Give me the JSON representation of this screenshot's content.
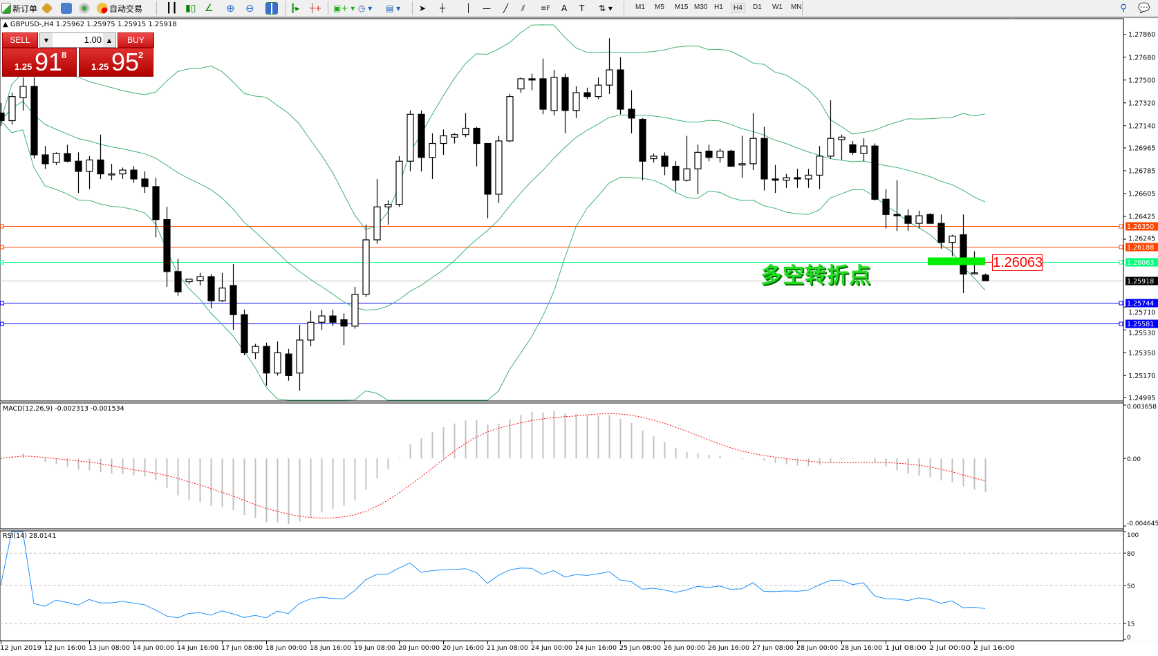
{
  "toolbar": {
    "new_order": "新订单",
    "auto_trading": "自动交易",
    "periods": [
      "M1",
      "M5",
      "M15",
      "M30",
      "H1",
      "H4",
      "D1",
      "W1",
      "MN"
    ],
    "active_period": "H4",
    "icons": [
      "new-order-icon",
      "metaeditor-icon",
      "history-icon",
      "signals-icon",
      "auto-trading-icon",
      "bar-chart-icon",
      "candlestick-icon",
      "line-chart-icon",
      "zoom-in-icon",
      "zoom-out-icon",
      "tile-windows-icon",
      "auto-scroll-icon",
      "chart-shift-icon",
      "indicators-icon",
      "periods-icon",
      "templates-icon",
      "cursor-icon",
      "crosshair-icon",
      "vertical-line-icon",
      "horizontal-line-icon",
      "trendline-icon",
      "equidistant-channel-icon",
      "fibonacci-icon",
      "text-icon",
      "text-label-icon",
      "arrows-icon",
      "search-icon",
      "chat-icon"
    ]
  },
  "header": {
    "symbol": "GBPUSD-,H4",
    "ohlc": "1.25962 1.25975 1.25915 1.25918"
  },
  "one_click": {
    "sell_label": "SELL",
    "buy_label": "BUY",
    "lot": "1.00",
    "sell_prefix": "1.25",
    "sell_big": "91",
    "sell_sup": "8",
    "buy_prefix": "1.25",
    "buy_big": "95",
    "buy_sup": "2"
  },
  "annotation": {
    "text": "多空转折点",
    "price": "1.26063",
    "marker_color": "#00ee00"
  },
  "chart_data": [
    {
      "type": "candlestick",
      "symbol": "GBPUSD-",
      "timeframe": "H4",
      "ylim": [
        1.24995,
        1.2786
      ],
      "y_ticks": [
        "1.27860",
        "1.27680",
        "1.27500",
        "1.27320",
        "1.27140",
        "1.26965",
        "1.26785",
        "1.26605",
        "1.26425",
        "1.26245",
        "1.25710",
        "1.25530",
        "1.25350",
        "1.25170",
        "1.24995"
      ],
      "x_ticks": [
        "12 Jun 2019",
        "12 Jun 16:00",
        "13 Jun 08:00",
        "14 Jun 00:00",
        "14 Jun 16:00",
        "17 Jun 08:00",
        "18 Jun 00:00",
        "18 Jun 16:00",
        "19 Jun 08:00",
        "20 Jun 00:00",
        "20 Jun 16:00",
        "21 Jun 08:00",
        "24 Jun 00:00",
        "24 Jun 16:00",
        "25 Jun 08:00",
        "26 Jun 00:00",
        "26 Jun 16:00",
        "27 Jun 08:00",
        "28 Jun 00:00",
        "28 Jun 16:00",
        "1 Jul 08:00",
        "2 Jul 00:00",
        "2 Jul 16:00"
      ],
      "candles_ohlc": [
        [
          1.2724,
          1.2732,
          1.2714,
          1.2718
        ],
        [
          1.2718,
          1.274,
          1.2715,
          1.2737
        ],
        [
          1.2736,
          1.2752,
          1.2726,
          1.2745
        ],
        [
          1.2745,
          1.2752,
          1.2688,
          1.2691
        ],
        [
          1.2691,
          1.2698,
          1.268,
          1.2684
        ],
        [
          1.2685,
          1.2693,
          1.2683,
          1.2692
        ],
        [
          1.2692,
          1.2699,
          1.2685,
          1.2686
        ],
        [
          1.2686,
          1.2693,
          1.2661,
          1.2678
        ],
        [
          1.2678,
          1.269,
          1.2664,
          1.2687
        ],
        [
          1.2687,
          1.2707,
          1.2672,
          1.2676
        ],
        [
          1.2676,
          1.2684,
          1.2671,
          1.2676
        ],
        [
          1.2676,
          1.2681,
          1.2672,
          1.2679
        ],
        [
          1.2679,
          1.2682,
          1.2669,
          1.2672
        ],
        [
          1.2672,
          1.2678,
          1.2661,
          1.2666
        ],
        [
          1.2666,
          1.2673,
          1.2626,
          1.264
        ],
        [
          1.264,
          1.265,
          1.2587,
          1.2599
        ],
        [
          1.2599,
          1.2609,
          1.258,
          1.2583
        ],
        [
          1.2591,
          1.2593,
          1.2589,
          1.2593
        ],
        [
          1.2592,
          1.2598,
          1.2588,
          1.2595
        ],
        [
          1.2595,
          1.2597,
          1.257,
          1.2576
        ],
        [
          1.2576,
          1.2598,
          1.2575,
          1.2586
        ],
        [
          1.2588,
          1.2605,
          1.2553,
          1.2565
        ],
        [
          1.2565,
          1.2569,
          1.2533,
          1.2535
        ],
        [
          1.2535,
          1.2542,
          1.253,
          1.254
        ],
        [
          1.254,
          1.2543,
          1.2509,
          1.2519
        ],
        [
          1.2519,
          1.2544,
          1.2517,
          1.2535
        ],
        [
          1.2534,
          1.2538,
          1.2513,
          1.2517
        ],
        [
          1.2519,
          1.2557,
          1.2505,
          1.2545
        ],
        [
          1.2545,
          1.2568,
          1.254,
          1.2559
        ],
        [
          1.2559,
          1.2569,
          1.2553,
          1.2564
        ],
        [
          1.2564,
          1.2569,
          1.2556,
          1.2559
        ],
        [
          1.2561,
          1.2566,
          1.2541,
          1.2556
        ],
        [
          1.2556,
          1.2587,
          1.2554,
          1.2581
        ],
        [
          1.2581,
          1.2636,
          1.2579,
          1.2624
        ],
        [
          1.2624,
          1.2672,
          1.2621,
          1.265
        ],
        [
          1.265,
          1.2655,
          1.2636,
          1.2652
        ],
        [
          1.2652,
          1.269,
          1.265,
          1.2686
        ],
        [
          1.2686,
          1.2726,
          1.2678,
          1.2723
        ],
        [
          1.2723,
          1.2726,
          1.2678,
          1.2689
        ],
        [
          1.2689,
          1.2708,
          1.2672,
          1.27
        ],
        [
          1.27,
          1.2711,
          1.2691,
          1.2706
        ],
        [
          1.2705,
          1.2708,
          1.27,
          1.2707
        ],
        [
          1.2707,
          1.2724,
          1.2705,
          1.2712
        ],
        [
          1.2712,
          1.2713,
          1.2682,
          1.27
        ],
        [
          1.27,
          1.27,
          1.2641,
          1.266
        ],
        [
          1.266,
          1.2706,
          1.2653,
          1.2702
        ],
        [
          1.2702,
          1.2739,
          1.2701,
          1.2737
        ],
        [
          1.2743,
          1.2752,
          1.274,
          1.2751
        ],
        [
          1.2751,
          1.2755,
          1.2742,
          1.275
        ],
        [
          1.2751,
          1.2767,
          1.2723,
          1.2727
        ],
        [
          1.2726,
          1.2758,
          1.2722,
          1.2752
        ],
        [
          1.2752,
          1.2755,
          1.2708,
          1.2726
        ],
        [
          1.2726,
          1.2745,
          1.272,
          1.274
        ],
        [
          1.274,
          1.2744,
          1.2735,
          1.2737
        ],
        [
          1.2737,
          1.2752,
          1.2735,
          1.2746
        ],
        [
          1.2746,
          1.2783,
          1.2739,
          1.2758
        ],
        [
          1.2758,
          1.2768,
          1.2723,
          1.2727
        ],
        [
          1.2727,
          1.2742,
          1.2708,
          1.272
        ],
        [
          1.2719,
          1.272,
          1.2671,
          1.2686
        ],
        [
          1.2688,
          1.2692,
          1.2685,
          1.269
        ],
        [
          1.269,
          1.2693,
          1.2675,
          1.2682
        ],
        [
          1.2682,
          1.2686,
          1.2662,
          1.2671
        ],
        [
          1.2671,
          1.2706,
          1.267,
          1.268
        ],
        [
          1.268,
          1.2699,
          1.266,
          1.2693
        ],
        [
          1.2694,
          1.2699,
          1.2686,
          1.2689
        ],
        [
          1.2689,
          1.2696,
          1.2685,
          1.2694
        ],
        [
          1.2694,
          1.2695,
          1.2682,
          1.2682
        ],
        [
          1.2683,
          1.2706,
          1.2673,
          1.2684
        ],
        [
          1.2684,
          1.2724,
          1.2679,
          1.2704
        ],
        [
          1.2704,
          1.2713,
          1.2663,
          1.2672
        ],
        [
          1.2672,
          1.2683,
          1.2661,
          1.2671
        ],
        [
          1.2671,
          1.2676,
          1.2665,
          1.2673
        ],
        [
          1.2673,
          1.268,
          1.2665,
          1.2672
        ],
        [
          1.2672,
          1.268,
          1.2665,
          1.2675
        ],
        [
          1.2675,
          1.2698,
          1.2664,
          1.269
        ],
        [
          1.269,
          1.2734,
          1.2688,
          1.2704
        ],
        [
          1.2703,
          1.2707,
          1.2687,
          1.2705
        ],
        [
          1.2699,
          1.2702,
          1.2691,
          1.2693
        ],
        [
          1.2692,
          1.2704,
          1.2686,
          1.2698
        ],
        [
          1.2698,
          1.27,
          1.2655,
          1.2656
        ],
        [
          1.2656,
          1.2664,
          1.2633,
          1.2644
        ],
        [
          1.2644,
          1.2671,
          1.2631,
          1.2643
        ],
        [
          1.2643,
          1.2648,
          1.2631,
          1.2637
        ],
        [
          1.2637,
          1.2647,
          1.2633,
          1.2643
        ],
        [
          1.2644,
          1.2645,
          1.2637,
          1.2637
        ],
        [
          1.2637,
          1.2644,
          1.2617,
          1.2622
        ],
        [
          1.2622,
          1.2628,
          1.2611,
          1.2627
        ],
        [
          1.2628,
          1.2644,
          1.2582,
          1.2597
        ],
        [
          1.2598,
          1.2615,
          1.2597,
          1.2598
        ],
        [
          1.25962,
          1.25975,
          1.25915,
          1.25918
        ]
      ],
      "bollinger": {
        "period": 20,
        "deviation": 2,
        "color": "#3cb371"
      },
      "horizontal_lines": [
        {
          "price": "1.26350",
          "color": "#ff4500"
        },
        {
          "price": "1.26188",
          "color": "#ff4500"
        },
        {
          "price": "1.26063",
          "color": "#00ff7f"
        },
        {
          "price": "1.25918",
          "color": "#c0c0c0",
          "label_bg": "#000000"
        },
        {
          "price": "1.25744",
          "color": "#0000ff"
        },
        {
          "price": "1.25581",
          "color": "#0000ff"
        }
      ]
    },
    {
      "type": "bar",
      "indicator": "MACD",
      "label": "MACD(12,26,9) -0.002313 -0.001534",
      "ylim": [
        -0.004645,
        0.003658
      ],
      "y_ticks": [
        "0.003658",
        "0.00",
        "-0.004645"
      ],
      "bar_color": "#c0c0c0",
      "signal_color": "#ff0000"
    },
    {
      "type": "line",
      "indicator": "RSI",
      "label": "RSI(14) 28.0141",
      "ylim": [
        0,
        100
      ],
      "y_ticks": [
        "100",
        "80",
        "50",
        "15",
        "0"
      ],
      "levels": [
        80,
        50,
        15
      ],
      "line_color": "#1e90ff"
    }
  ]
}
